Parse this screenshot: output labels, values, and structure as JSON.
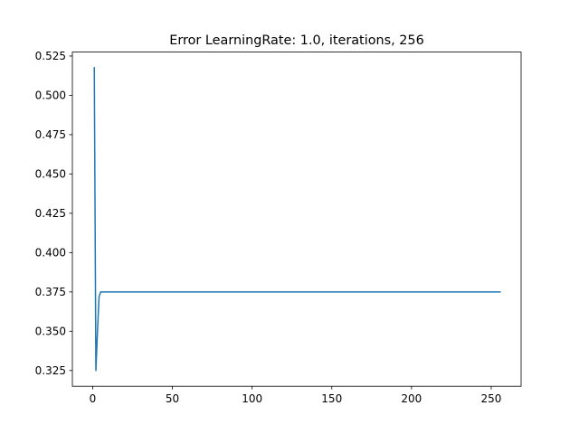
{
  "chart_data": {
    "type": "line",
    "title": "Error LearningRate: 1.0, iterations, 256",
    "xlabel": "",
    "ylabel": "",
    "xlim": [
      -12.75,
      268.75
    ],
    "ylim": [
      0.315,
      0.5275
    ],
    "xticks": [
      0,
      50,
      100,
      150,
      200,
      250
    ],
    "xtick_labels": [
      "0",
      "50",
      "100",
      "150",
      "200",
      "250"
    ],
    "yticks": [
      0.325,
      0.35,
      0.375,
      0.4,
      0.425,
      0.45,
      0.475,
      0.5,
      0.525
    ],
    "ytick_labels": [
      "0.325",
      "0.350",
      "0.375",
      "0.400",
      "0.425",
      "0.450",
      "0.475",
      "0.500",
      "0.525"
    ],
    "grid": false,
    "legend": "none",
    "series": [
      {
        "color": "#1f77b4",
        "x": [
          1,
          2,
          3,
          4,
          5,
          6,
          256
        ],
        "y": [
          0.518,
          0.325,
          0.35,
          0.372,
          0.375,
          0.375,
          0.375
        ]
      }
    ]
  }
}
